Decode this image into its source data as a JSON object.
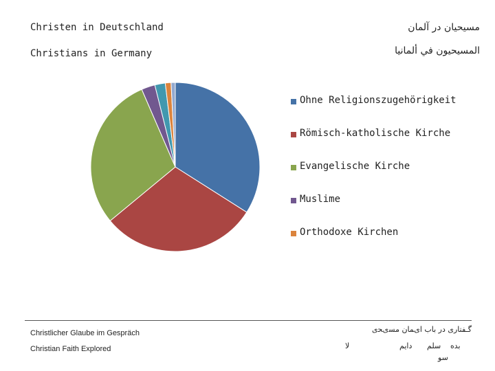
{
  "header": {
    "title_de": "Christen in Deutschland",
    "title_en": "Christians in Germany",
    "title_fa": "مسیحیان در آلمان",
    "title_ar": "المسيحيون في ألمانيا"
  },
  "chart_data": {
    "type": "pie",
    "title": "Christen in Deutschland",
    "categories": [
      "Ohne Religionszugehörigkeit",
      "Römisch-katholische Kirche",
      "Evangelische Kirche",
      "Muslime",
      "Orthodoxe Kirchen",
      "",
      ""
    ],
    "values": [
      34.0,
      30.0,
      29.5,
      2.6,
      2.0,
      1.1,
      0.8
    ],
    "colors": [
      "#4572A7",
      "#AA4643",
      "#89A54E",
      "#71588F",
      "#4198AF",
      "#DB843D",
      "#93A9CF"
    ],
    "legend": {
      "position": "right",
      "labels": [
        "Ohne Religionszugehörigkeit",
        "Römisch-katholische Kirche",
        "Evangelische Kirche",
        "Muslime",
        "Orthodoxe Kirchen"
      ],
      "colors": [
        "#4572A7",
        "#AA4643",
        "#89A54E",
        "#71588F",
        "#DB843D"
      ]
    }
  },
  "footer": {
    "left_de": "Christlicher Glaube im Gespräch",
    "left_en": "Christian Faith Explored",
    "right_fa": "گـﻔﺘﺎﺭی ﺩﺭ ﺑﺎﺏ ﺍیﻤﺎﻥ ﻣﺴیﺤی",
    "frag_1": "ﻻ",
    "frag_2": "ﺩﺍﻳﻢ",
    "frag_3": "ﺳﻠﻢ",
    "frag_4": "ﺑﺪﻩ",
    "frag_5": "ﺳﻮ"
  }
}
